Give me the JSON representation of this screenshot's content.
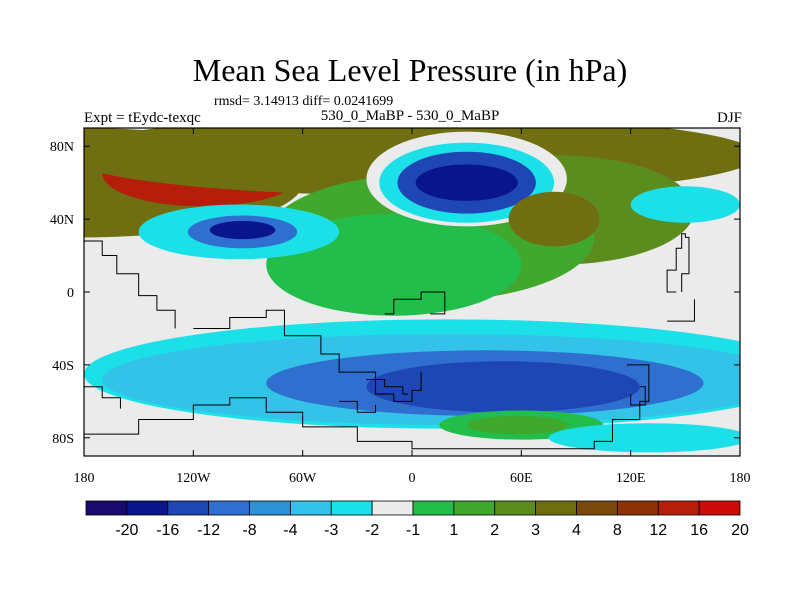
{
  "header": {
    "title": "Mean Sea Level Pressure (in hPa)",
    "stats": "rmsd= 3.14913 diff= 0.0241699",
    "left": "Expt = tEydc-texqc",
    "center": "530_0_MaBP - 530_0_MaBP",
    "right": "DJF"
  },
  "colors": {
    "levels": [
      "#1a0a6e",
      "#08158c",
      "#1e46b4",
      "#2e6fd0",
      "#2f92d8",
      "#33c2e8",
      "#1ce0e8",
      "#ebebeb",
      "#22bd4a",
      "#41a82e",
      "#5a8c1e",
      "#6f6f12",
      "#7a4a0c",
      "#8c3206",
      "#b41e0a",
      "#cc0a08"
    ],
    "land_outline": "#000000"
  },
  "chart_data": {
    "type": "contour-map",
    "title": "Mean Sea Level Pressure (in hPa)",
    "x_ticks": [
      {
        "value": -180,
        "label": "180"
      },
      {
        "value": -120,
        "label": "120W"
      },
      {
        "value": -60,
        "label": "60W"
      },
      {
        "value": 0,
        "label": "0"
      },
      {
        "value": 60,
        "label": "60E"
      },
      {
        "value": 120,
        "label": "120E"
      },
      {
        "value": 180,
        "label": "180"
      }
    ],
    "y_ticks": [
      {
        "value": 80,
        "label": "80N"
      },
      {
        "value": 40,
        "label": "40N"
      },
      {
        "value": 0,
        "label": "0"
      },
      {
        "value": -40,
        "label": "40S"
      },
      {
        "value": -80,
        "label": "80S"
      }
    ],
    "xlim": [
      -180,
      180
    ],
    "ylim": [
      -90,
      90
    ],
    "colorbar_labels": [
      "-20",
      "-16",
      "-12",
      "-8",
      "-4",
      "-3",
      "-2",
      "-1",
      "1",
      "2",
      "3",
      "4",
      "8",
      "12",
      "16",
      "20"
    ],
    "features": [
      {
        "level": 11,
        "lon": -180,
        "lat": 60,
        "rx": 120,
        "ry": 30
      },
      {
        "level": 14,
        "lon": -115,
        "lat": 65,
        "rx": 55,
        "ry": 18
      },
      {
        "level": 15,
        "lon": -110,
        "lat": 67,
        "rx": 30,
        "ry": 8
      },
      {
        "level": 11,
        "lon": 0,
        "lat": 75,
        "rx": 190,
        "ry": 22
      },
      {
        "level": 10,
        "lon": 80,
        "lat": 45,
        "rx": 75,
        "ry": 30
      },
      {
        "level": 9,
        "lon": 10,
        "lat": 30,
        "rx": 90,
        "ry": 35
      },
      {
        "level": 8,
        "lon": -10,
        "lat": 15,
        "rx": 70,
        "ry": 28
      },
      {
        "level": 7,
        "lon": 30,
        "lat": 62,
        "rx": 55,
        "ry": 26
      },
      {
        "level": 6,
        "lon": 30,
        "lat": 60,
        "rx": 48,
        "ry": 22
      },
      {
        "level": 2,
        "lon": 30,
        "lat": 60,
        "rx": 38,
        "ry": 17
      },
      {
        "level": 1,
        "lon": 30,
        "lat": 60,
        "rx": 28,
        "ry": 10
      },
      {
        "level": 11,
        "lon": 78,
        "lat": 40,
        "rx": 25,
        "ry": 15
      },
      {
        "level": 6,
        "lon": -95,
        "lat": 33,
        "rx": 55,
        "ry": 15
      },
      {
        "level": 3,
        "lon": -93,
        "lat": 33,
        "rx": 30,
        "ry": 9
      },
      {
        "level": 1,
        "lon": -93,
        "lat": 34,
        "rx": 18,
        "ry": 5
      },
      {
        "level": 6,
        "lon": 150,
        "lat": 48,
        "rx": 30,
        "ry": 10
      },
      {
        "level": 6,
        "lon": 20,
        "lat": -45,
        "rx": 200,
        "ry": 30
      },
      {
        "level": 5,
        "lon": 20,
        "lat": -48,
        "rx": 190,
        "ry": 25
      },
      {
        "level": 3,
        "lon": 40,
        "lat": -50,
        "rx": 120,
        "ry": 18
      },
      {
        "level": 2,
        "lon": 50,
        "lat": -52,
        "rx": 75,
        "ry": 14
      },
      {
        "level": 8,
        "lon": 60,
        "lat": -73,
        "rx": 45,
        "ry": 8
      },
      {
        "level": 9,
        "lon": 58,
        "lat": -73,
        "rx": 28,
        "ry": 5
      },
      {
        "level": 6,
        "lon": 130,
        "lat": -80,
        "rx": 55,
        "ry": 8
      }
    ]
  }
}
